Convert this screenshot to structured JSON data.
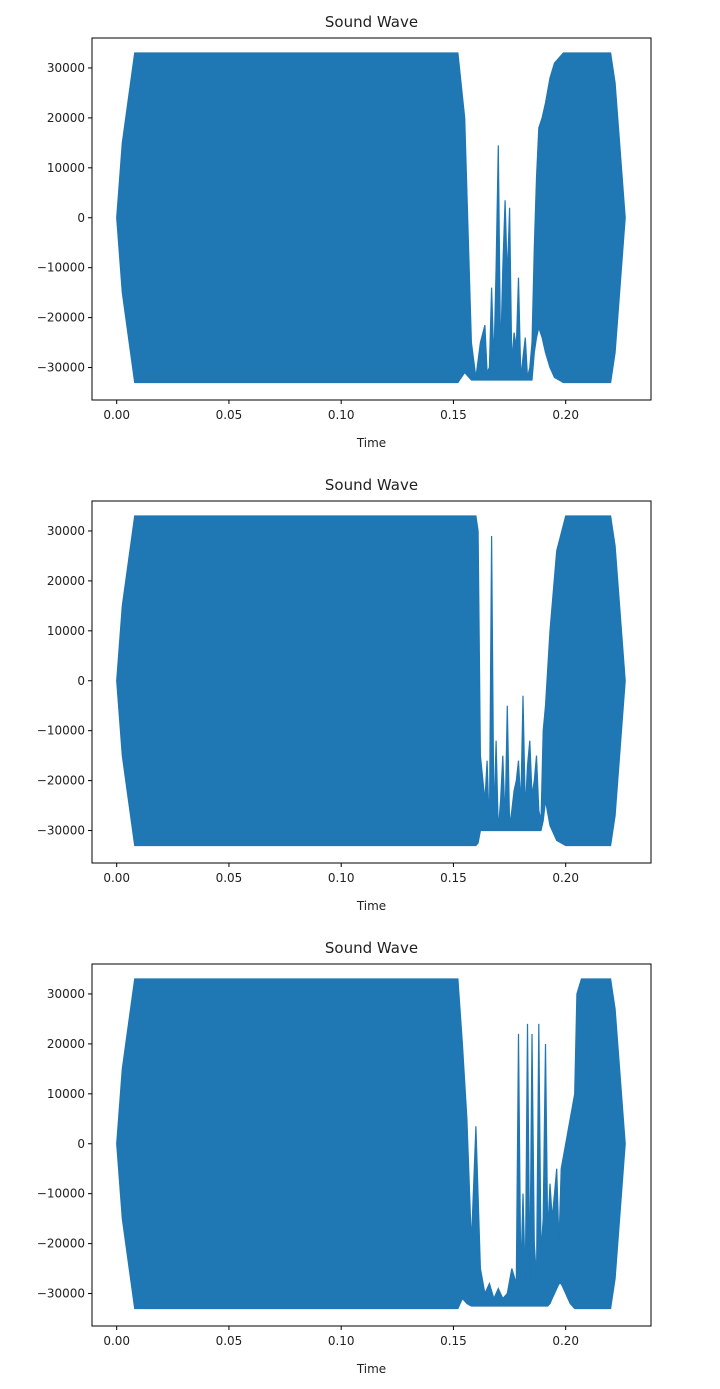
{
  "chart_data": [
    {
      "type": "line",
      "title": "Sound Wave",
      "xlabel": "Time",
      "ylabel": "",
      "xlim": [
        -0.011,
        0.238
      ],
      "ylim": [
        -36500,
        36000
      ],
      "xticks": [
        0.0,
        0.05,
        0.1,
        0.15,
        0.2
      ],
      "xtick_labels": [
        "0.00",
        "0.05",
        "0.10",
        "0.15",
        "0.20"
      ],
      "yticks": [
        30000,
        20000,
        10000,
        0,
        -10000,
        -20000,
        -30000
      ],
      "ytick_labels": [
        "30000",
        "20000",
        "10000",
        "0",
        "−10000",
        "−20000",
        "−30000"
      ],
      "grid": false,
      "color": "#1f77b4",
      "series": [
        {
          "x": [
            0.0,
            0.0025,
            0.008,
            0.152,
            0.155,
            0.158,
            0.16,
            0.162,
            0.164,
            0.165,
            0.166,
            0.167,
            0.168,
            0.169,
            0.17,
            0.171,
            0.172,
            0.173,
            0.174,
            0.175,
            0.176,
            0.177,
            0.178,
            0.179,
            0.18,
            0.181,
            0.182,
            0.183,
            0.184,
            0.185,
            0.186,
            0.187,
            0.188,
            0.1895,
            0.191,
            0.193,
            0.195,
            0.199,
            0.22,
            0.222,
            0.224,
            0.2265
          ],
          "upper": [
            0,
            15000,
            33000,
            33000,
            20000,
            -25000,
            -32000,
            -25000,
            -21500,
            -31000,
            -30000,
            -14000,
            -29000,
            -10000,
            14500,
            -28000,
            -10000,
            3500,
            -12000,
            2000,
            -29000,
            -23000,
            -26000,
            -12000,
            -32000,
            -28000,
            -24000,
            -32000,
            -30000,
            -25000,
            -6000,
            8000,
            18000,
            20000,
            23000,
            28000,
            31000,
            33000,
            33000,
            27000,
            15000,
            0
          ],
          "lower": [
            0,
            -15000,
            -33000,
            -33000,
            -31000,
            -32500,
            -32500,
            -32500,
            -32500,
            -32500,
            -32500,
            -32500,
            -32500,
            -32500,
            -32500,
            -32500,
            -32500,
            -32500,
            -32500,
            -32500,
            -32500,
            -32500,
            -32500,
            -32500,
            -32500,
            -32500,
            -32500,
            -32500,
            -32500,
            -32500,
            -27000,
            -24000,
            -22000,
            -24000,
            -27000,
            -30000,
            -32000,
            -33000,
            -33000,
            -27000,
            -15000,
            0
          ]
        }
      ]
    },
    {
      "type": "line",
      "title": "Sound Wave",
      "xlabel": "Time",
      "ylabel": "",
      "xlim": [
        -0.011,
        0.238
      ],
      "ylim": [
        -36500,
        36000
      ],
      "xticks": [
        0.0,
        0.05,
        0.1,
        0.15,
        0.2
      ],
      "xtick_labels": [
        "0.00",
        "0.05",
        "0.10",
        "0.15",
        "0.20"
      ],
      "yticks": [
        30000,
        20000,
        10000,
        0,
        -10000,
        -20000,
        -30000
      ],
      "ytick_labels": [
        "30000",
        "20000",
        "10000",
        "0",
        "−10000",
        "−20000",
        "−30000"
      ],
      "grid": false,
      "color": "#1f77b4",
      "series": [
        {
          "x": [
            0.0,
            0.0025,
            0.008,
            0.16,
            0.161,
            0.162,
            0.164,
            0.165,
            0.166,
            0.167,
            0.168,
            0.169,
            0.17,
            0.171,
            0.172,
            0.173,
            0.174,
            0.175,
            0.176,
            0.177,
            0.178,
            0.179,
            0.18,
            0.181,
            0.182,
            0.183,
            0.184,
            0.185,
            0.186,
            0.187,
            0.188,
            0.189,
            0.19,
            0.191,
            0.193,
            0.196,
            0.2,
            0.22,
            0.222,
            0.224,
            0.2265
          ],
          "upper": [
            0,
            15000,
            33000,
            33000,
            30000,
            -15000,
            -24000,
            -16000,
            -30000,
            29000,
            -28000,
            -12000,
            -30000,
            -24000,
            -15000,
            -28000,
            -5000,
            -29000,
            -26000,
            -22000,
            -20000,
            -16000,
            -25000,
            -3000,
            -26000,
            -17000,
            -12000,
            -23000,
            -20000,
            -15000,
            -26000,
            -28000,
            -10000,
            -5000,
            10000,
            26000,
            33000,
            33000,
            27000,
            15000,
            0
          ],
          "lower": [
            0,
            -15000,
            -33000,
            -33000,
            -32500,
            -30000,
            -30000,
            -30000,
            -30000,
            -30000,
            -30000,
            -30000,
            -30000,
            -30000,
            -30000,
            -30000,
            -30000,
            -30000,
            -30000,
            -30000,
            -30000,
            -30000,
            -30000,
            -30000,
            -30000,
            -30000,
            -30000,
            -30000,
            -30000,
            -30000,
            -30000,
            -30000,
            -28000,
            -24000,
            -29000,
            -32000,
            -33000,
            -33000,
            -27000,
            -15000,
            0
          ]
        }
      ]
    },
    {
      "type": "line",
      "title": "Sound Wave",
      "xlabel": "Time",
      "ylabel": "",
      "xlim": [
        -0.011,
        0.238
      ],
      "ylim": [
        -36500,
        36000
      ],
      "xticks": [
        0.0,
        0.05,
        0.1,
        0.15,
        0.2
      ],
      "xtick_labels": [
        "0.00",
        "0.05",
        "0.10",
        "0.15",
        "0.20"
      ],
      "yticks": [
        30000,
        20000,
        10000,
        0,
        -10000,
        -20000,
        -30000
      ],
      "ytick_labels": [
        "30000",
        "20000",
        "10000",
        "0",
        "−10000",
        "−20000",
        "−30000"
      ],
      "grid": false,
      "color": "#1f77b4",
      "series": [
        {
          "x": [
            0.0,
            0.0025,
            0.008,
            0.152,
            0.154,
            0.156,
            0.158,
            0.16,
            0.162,
            0.164,
            0.166,
            0.168,
            0.17,
            0.172,
            0.174,
            0.176,
            0.178,
            0.179,
            0.18,
            0.181,
            0.182,
            0.183,
            0.184,
            0.185,
            0.186,
            0.187,
            0.188,
            0.189,
            0.19,
            0.191,
            0.192,
            0.193,
            0.194,
            0.195,
            0.196,
            0.197,
            0.198,
            0.2,
            0.202,
            0.204,
            0.205,
            0.207,
            0.22,
            0.222,
            0.224,
            0.2265
          ],
          "upper": [
            0,
            15000,
            33000,
            33000,
            20000,
            5000,
            -20000,
            3500,
            -25000,
            -30000,
            -28000,
            -31000,
            -29000,
            -31000,
            -30000,
            -25000,
            -28000,
            22000,
            -27000,
            -10000,
            -28000,
            24000,
            -28000,
            22000,
            -20000,
            -27000,
            24000,
            -22000,
            -15000,
            20000,
            -18000,
            -8000,
            -15000,
            -10000,
            -5000,
            -20000,
            -5000,
            0,
            5000,
            10000,
            30000,
            33000,
            33000,
            27000,
            15000,
            0
          ],
          "lower": [
            0,
            -15000,
            -33000,
            -33000,
            -31000,
            -32000,
            -32500,
            -32500,
            -32500,
            -32500,
            -32500,
            -32500,
            -32500,
            -32500,
            -32500,
            -32500,
            -32500,
            -32500,
            -32500,
            -32500,
            -32500,
            -32500,
            -32500,
            -32500,
            -32500,
            -32500,
            -32500,
            -32500,
            -32500,
            -32500,
            -32500,
            -32000,
            -31000,
            -30000,
            -29000,
            -28000,
            -28000,
            -30000,
            -32000,
            -33000,
            -33000,
            -33000,
            -33000,
            -27000,
            -15000,
            0
          ]
        }
      ]
    }
  ]
}
